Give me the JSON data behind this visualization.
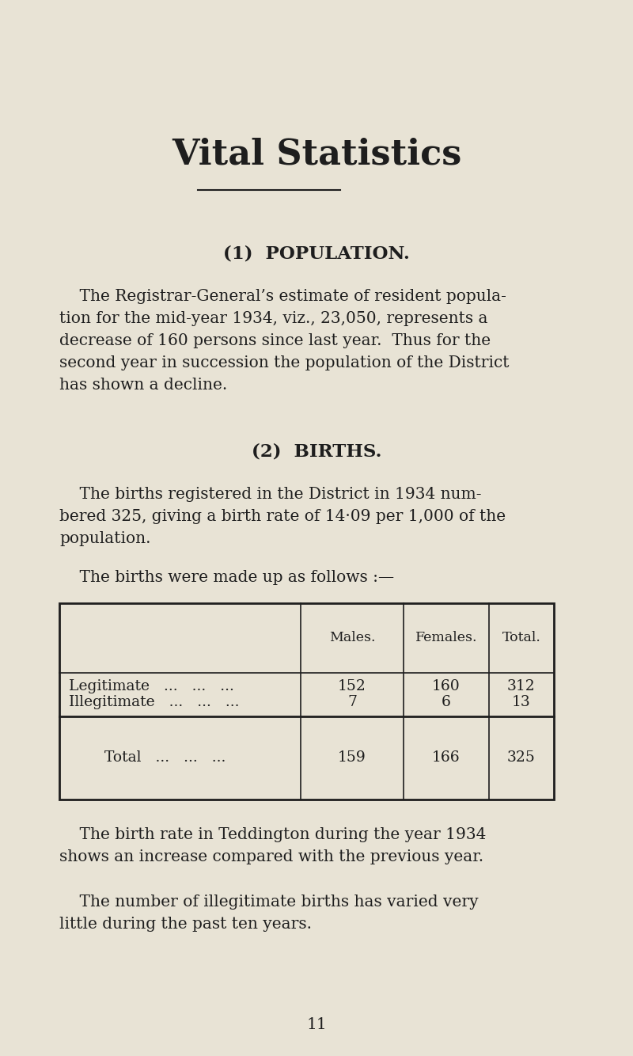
{
  "background_color": "#e8e3d5",
  "text_color": "#1e1e1e",
  "title": "Vital Statistics",
  "title_fontsize": 32,
  "section1_heading": "(1)  POPULATION.",
  "section2_heading": "(2)  BIRTHS.",
  "section1_body": "    The Registrar-General’s estimate of resident popula-\ntion for the mid-year 1934, viz., 23,050, represents a\ndecrease of 160 persons since last year.  Thus for the\nsecond year in succession the population of the District\nhas shown a decline.",
  "section2_body1": "    The births registered in the District in 1934 num-\nbered 325, giving a birth rate of 14·09 per 1,000 of the\npopulation.",
  "section2_body2": "    The births were made up as follows :—",
  "section3_body1": "    The birth rate in Teddington during the year 1934\nshows an increase compared with the previous year.",
  "section3_body2": "    The number of illegitimate births has varied very\nlittle during the past ten years.",
  "page_number": "11",
  "body_fontsize": 14.5,
  "heading_fontsize": 16.5,
  "table_col_headers": [
    "Males.",
    "Females.",
    "Total."
  ],
  "table_rows": [
    [
      "Legitimate   ...   ...   ...",
      "152",
      "160",
      "312"
    ],
    [
      "Illegitimate   ...   ...   ...",
      "7",
      "6",
      "13"
    ],
    [
      "Total   ...   ...   ...",
      "159",
      "166",
      "325"
    ]
  ]
}
